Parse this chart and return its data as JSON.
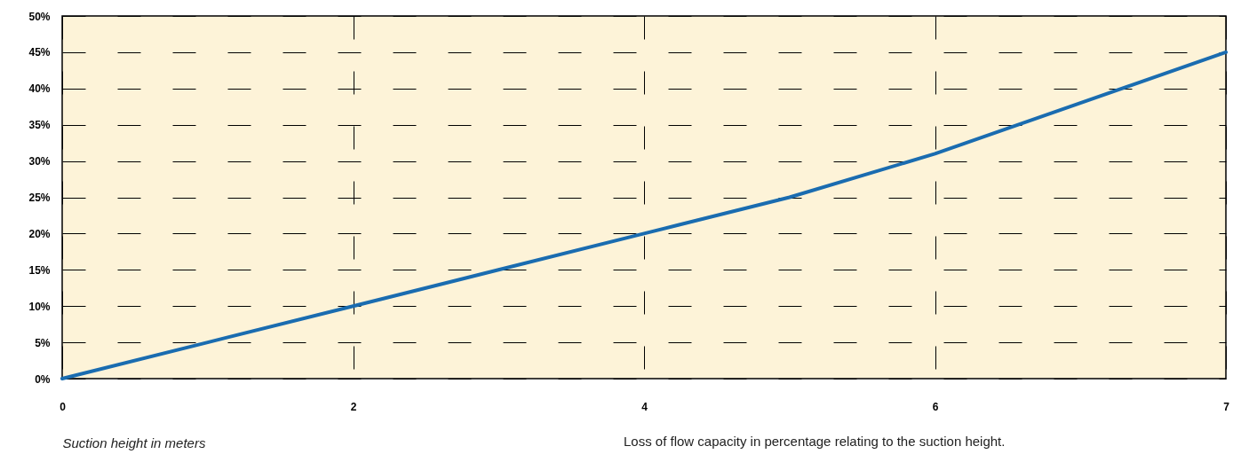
{
  "chart_data": {
    "type": "line",
    "xlabel": "Suction height in meters",
    "annotations": [
      "Loss of flow capacity in percentage relating to the suction height."
    ],
    "categories": [
      "0",
      null,
      "2",
      null,
      "4",
      null,
      "6",
      null,
      "7"
    ],
    "series": [
      {
        "color": "#1a6cb0",
        "values": [
          0,
          5,
          10,
          15,
          20,
          25,
          31,
          38,
          45
        ]
      }
    ],
    "ylim": [
      0,
      50
    ],
    "yticks": [
      {
        "value": 0,
        "label": "0%"
      },
      {
        "value": 5,
        "label": "5%"
      },
      {
        "value": 10,
        "label": "10%"
      },
      {
        "value": 15,
        "label": "15%"
      },
      {
        "value": 20,
        "label": "20%"
      },
      {
        "value": 25,
        "label": "25%"
      },
      {
        "value": 30,
        "label": "30%"
      },
      {
        "value": 35,
        "label": "35%"
      },
      {
        "value": 40,
        "label": "40%"
      },
      {
        "value": 45,
        "label": "45%"
      },
      {
        "value": 50,
        "label": "50%"
      }
    ],
    "grid": true,
    "marker": "none"
  }
}
